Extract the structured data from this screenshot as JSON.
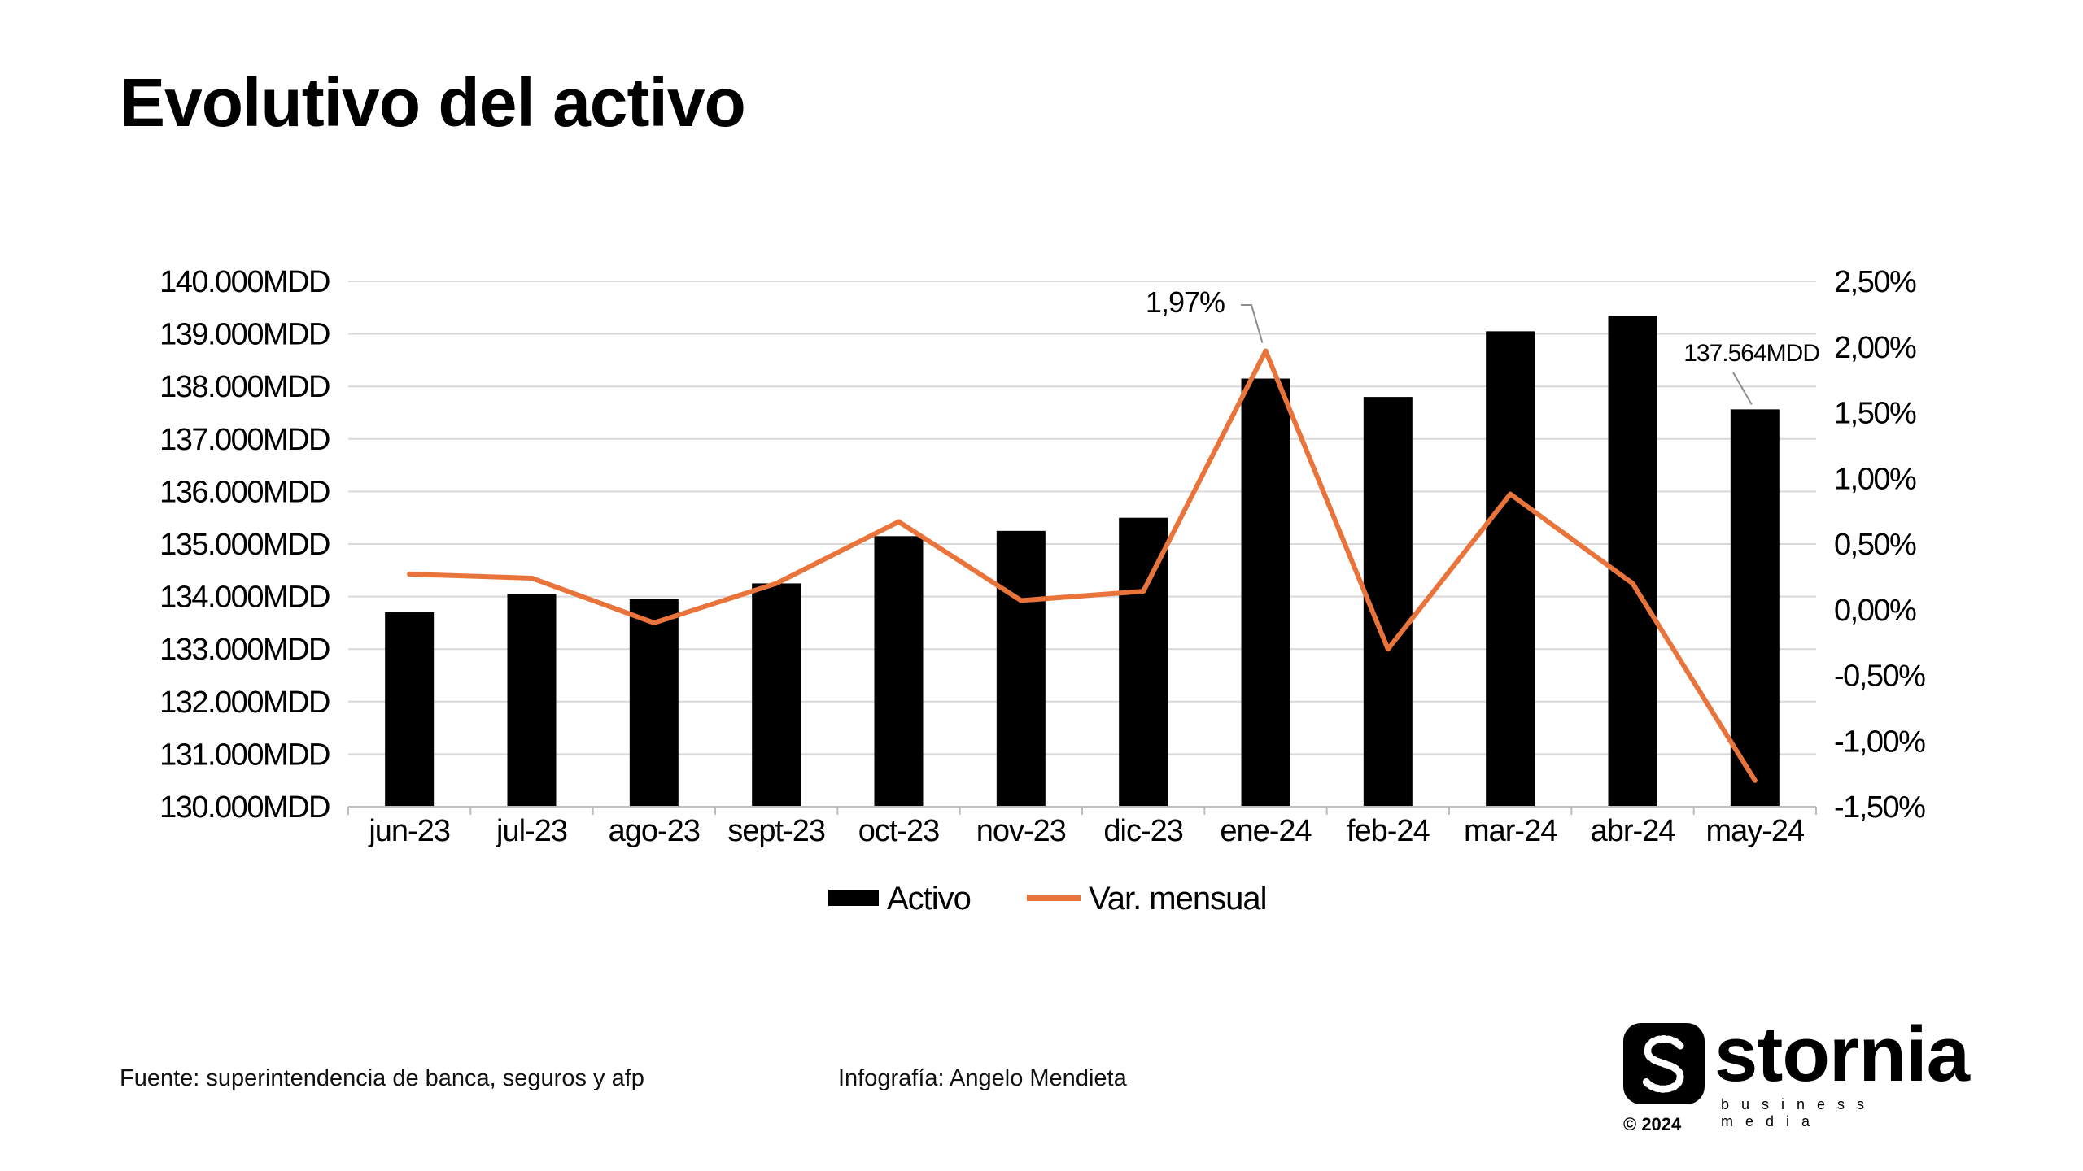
{
  "title": "Evolutivo del activo",
  "footer": {
    "source": "Fuente: superintendencia de banca, seguros y afp",
    "credit": "Infografía: Angelo Mendieta"
  },
  "brand": {
    "name": "stornia",
    "tagline": "business media",
    "copyright": "© 2024"
  },
  "colors": {
    "bar": "#000000",
    "line": "#E8743B",
    "grid": "#D9D9D9"
  },
  "chart_data": {
    "type": "bar",
    "categories": [
      "jun-23",
      "jul-23",
      "ago-23",
      "sept-23",
      "oct-23",
      "nov-23",
      "dic-23",
      "ene-24",
      "feb-24",
      "mar-24",
      "abr-24",
      "may-24"
    ],
    "series": [
      {
        "name": "Activo",
        "type": "bar",
        "axis": "left",
        "values": [
          133700,
          134050,
          133950,
          134250,
          135150,
          135250,
          135500,
          138150,
          137800,
          139050,
          139350,
          137564
        ]
      },
      {
        "name": "Var. mensual",
        "type": "line",
        "axis": "right",
        "values": [
          0.27,
          0.24,
          -0.1,
          0.2,
          0.67,
          0.07,
          0.14,
          1.97,
          -0.3,
          0.88,
          0.2,
          -1.3
        ]
      }
    ],
    "left_axis": {
      "ylim": [
        130000,
        140000
      ],
      "ticks": [
        "130.000MDD",
        "131.000MDD",
        "132.000MDD",
        "133.000MDD",
        "134.000MDD",
        "135.000MDD",
        "136.000MDD",
        "137.000MDD",
        "138.000MDD",
        "139.000MDD",
        "140.000MDD"
      ]
    },
    "right_axis": {
      "ylim": [
        -1.5,
        2.5
      ],
      "ticks": [
        "-1,50%",
        "-1,00%",
        "-0,50%",
        "0,00%",
        "0,50%",
        "1,00%",
        "1,50%",
        "2,00%",
        "2,50%"
      ]
    },
    "annotations": [
      {
        "text": "1,97%",
        "category": "ene-24",
        "series": "Var. mensual"
      },
      {
        "text": "137.564MDD",
        "category": "may-24",
        "series": "Activo"
      }
    ],
    "grid": true,
    "legend_position": "bottom"
  }
}
